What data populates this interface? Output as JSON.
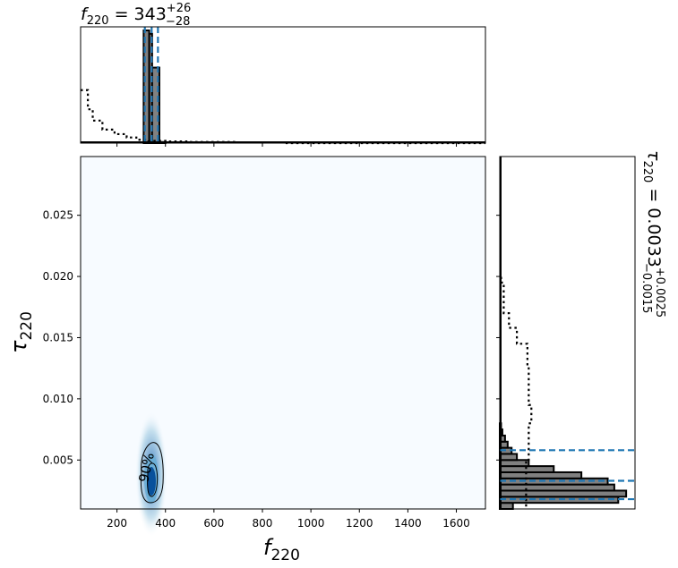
{
  "chart_data": [
    {
      "type": "histogram",
      "panel": "top-marginal",
      "title": {
        "symbol": "f",
        "subscript": "220",
        "value": "343",
        "upper": "+26",
        "lower": "−28"
      },
      "xlim": [
        50,
        1720
      ],
      "xticks": [
        200,
        400,
        600,
        800,
        1000,
        1200,
        1400,
        1600
      ],
      "posterior_bins": [
        {
          "x0": 310,
          "x1": 333,
          "h": 1.0
        },
        {
          "x0": 333,
          "x1": 345,
          "h": 0.97
        },
        {
          "x0": 345,
          "x1": 375,
          "h": 0.67
        },
        {
          "x0": 375,
          "x1": 400,
          "h": 0.01
        }
      ],
      "prior_steps": [
        [
          50,
          0.47
        ],
        [
          80,
          0.3
        ],
        [
          100,
          0.2
        ],
        [
          140,
          0.12
        ],
        [
          190,
          0.08
        ],
        [
          240,
          0.05
        ],
        [
          280,
          0.03
        ],
        [
          330,
          0.02
        ],
        [
          400,
          0.015
        ],
        [
          500,
          0.01
        ],
        [
          700,
          0.005
        ],
        [
          900,
          0.0
        ],
        [
          1720,
          0.0
        ]
      ],
      "quantile_lines": [
        315,
        343,
        369
      ],
      "colors": {
        "fill": "#808080",
        "edge": "#000000",
        "quantile": "#1f77b4",
        "prior": "#000000"
      }
    },
    {
      "type": "heatmap",
      "panel": "joint-density",
      "xlabel": {
        "symbol": "f",
        "subscript": "220"
      },
      "ylabel": {
        "symbol": "τ",
        "subscript": "220"
      },
      "xlim": [
        50,
        1720
      ],
      "ylim": [
        0.001,
        0.0298
      ],
      "xticks": [
        200,
        400,
        600,
        800,
        1000,
        1200,
        1400,
        1600
      ],
      "yticks": [
        0.005,
        0.01,
        0.015,
        0.02,
        0.025
      ],
      "ytick_labels": [
        "0.005",
        "0.010",
        "0.015",
        "0.020",
        "0.025"
      ],
      "density_peak": {
        "x": 343,
        "y": 0.0033
      },
      "contour_label": "90%",
      "colors": {
        "background": "#f7fbff",
        "peak": "#08519c"
      }
    },
    {
      "type": "histogram",
      "panel": "right-marginal",
      "orientation": "horizontal",
      "title": {
        "symbol": "τ",
        "subscript": "220",
        "value": "0.0033",
        "upper": "+0.0025",
        "lower": "−0.0015"
      },
      "ylim": [
        0.001,
        0.0298
      ],
      "posterior_bins": [
        {
          "y0": 0.001,
          "y1": 0.0015,
          "w": 0.1
        },
        {
          "y0": 0.0015,
          "y1": 0.002,
          "w": 0.9
        },
        {
          "y0": 0.002,
          "y1": 0.0025,
          "w": 0.96
        },
        {
          "y0": 0.0025,
          "y1": 0.003,
          "w": 0.87
        },
        {
          "y0": 0.003,
          "y1": 0.0035,
          "w": 0.82
        },
        {
          "y0": 0.0035,
          "y1": 0.004,
          "w": 0.62
        },
        {
          "y0": 0.004,
          "y1": 0.0045,
          "w": 0.41
        },
        {
          "y0": 0.0045,
          "y1": 0.005,
          "w": 0.22
        },
        {
          "y0": 0.005,
          "y1": 0.0055,
          "w": 0.13
        },
        {
          "y0": 0.0055,
          "y1": 0.006,
          "w": 0.09
        },
        {
          "y0": 0.006,
          "y1": 0.0065,
          "w": 0.06
        },
        {
          "y0": 0.0065,
          "y1": 0.007,
          "w": 0.04
        },
        {
          "y0": 0.007,
          "y1": 0.0075,
          "w": 0.02
        },
        {
          "y0": 0.0075,
          "y1": 0.008,
          "w": 0.01
        }
      ],
      "prior_steps": [
        [
          0.0012,
          0.2
        ],
        [
          0.005,
          0.22
        ],
        [
          0.008,
          0.24
        ],
        [
          0.0095,
          0.22
        ],
        [
          0.0125,
          0.21
        ],
        [
          0.0145,
          0.13
        ],
        [
          0.0158,
          0.07
        ],
        [
          0.017,
          0.03
        ],
        [
          0.0195,
          0.01
        ],
        [
          0.02,
          0.0
        ]
      ],
      "quantile_lines": [
        0.0018,
        0.0033,
        0.0058
      ],
      "colors": {
        "fill": "#808080",
        "edge": "#000000",
        "quantile": "#1f77b4",
        "prior": "#000000"
      }
    }
  ]
}
